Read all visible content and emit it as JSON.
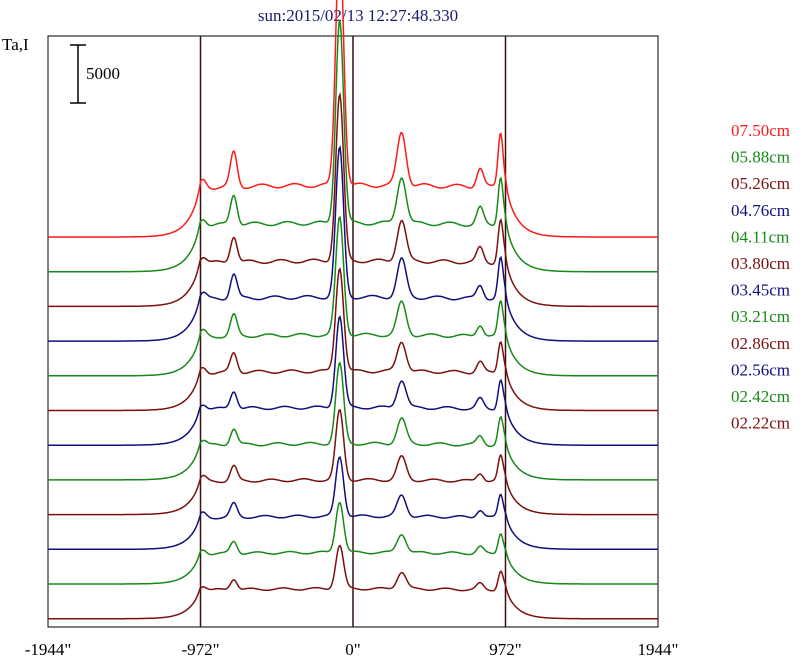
{
  "chart_data": {
    "type": "line",
    "title": "sun:2015/02/13 12:27:48.330",
    "ylabel": "Ta,I",
    "scale_bar": {
      "label": "5000",
      "value": 5000
    },
    "x_ticks": [
      {
        "value": -1944,
        "label": "-1944\""
      },
      {
        "value": -972,
        "label": "-972\""
      },
      {
        "value": 0,
        "label": "0\""
      },
      {
        "value": 972,
        "label": "972\""
      },
      {
        "value": 1944,
        "label": "1944\""
      }
    ],
    "xlim": [
      -1944,
      1944
    ],
    "vertical_lines_at": [
      -972,
      0,
      972
    ],
    "series_note": "Stacked scans, listed top to bottom; amp_scale is the relative peak height of each scan",
    "series": [
      {
        "name": "07.50cm",
        "color": "#ff1a1a",
        "amp_scale": 1.55
      },
      {
        "name": "05.88cm",
        "color": "#188a18",
        "amp_scale": 1.45
      },
      {
        "name": "05.26cm",
        "color": "#7a1010",
        "amp_scale": 1.35
      },
      {
        "name": "04.76cm",
        "color": "#10107a",
        "amp_scale": 1.3
      },
      {
        "name": "04.11cm",
        "color": "#188a18",
        "amp_scale": 1.2
      },
      {
        "name": "03.80cm",
        "color": "#7a1010",
        "amp_scale": 1.15
      },
      {
        "name": "03.45cm",
        "color": "#10107a",
        "amp_scale": 1.1
      },
      {
        "name": "03.21cm",
        "color": "#188a18",
        "amp_scale": 1.05
      },
      {
        "name": "02.86cm",
        "color": "#7a1010",
        "amp_scale": 1.0
      },
      {
        "name": "02.56cm",
        "color": "#10107a",
        "amp_scale": 0.95
      },
      {
        "name": "02.42cm",
        "color": "#188a18",
        "amp_scale": 0.9
      },
      {
        "name": "02.22cm",
        "color": "#7a1010",
        "amp_scale": 0.85
      }
    ]
  }
}
